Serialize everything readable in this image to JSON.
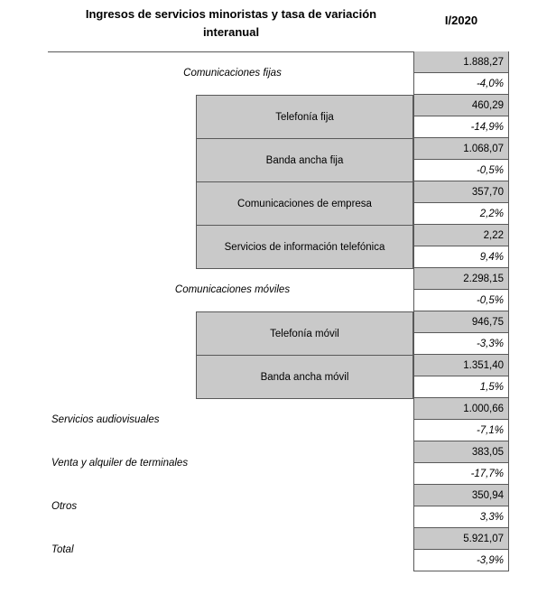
{
  "header": {
    "title_line1": "Ingresos de servicios minoristas y tasa de variación",
    "title_line2": "interanual",
    "period": "I/2020"
  },
  "colors": {
    "cell_gray": "#c9c9c9",
    "border_dark": "#595959",
    "text_color": "#000000"
  },
  "chart_data": {
    "type": "table",
    "title": "Ingresos de servicios minoristas y tasa de variación interanual",
    "column_header": "I/2020",
    "row_format": [
      "revenue (gray cell)",
      "yoy variation % (white italic cell)"
    ],
    "rows": [
      {
        "label": "Comunicaciones fijas",
        "level": 1,
        "value": 1888.27,
        "value_display": "1.888,27",
        "yoy": -4.0,
        "yoy_display": "-4,0%"
      },
      {
        "label": "Telefonía fija",
        "level": 2,
        "value": 460.29,
        "value_display": "460,29",
        "yoy": -14.9,
        "yoy_display": "-14,9%"
      },
      {
        "label": "Banda ancha fija",
        "level": 2,
        "value": 1068.07,
        "value_display": "1.068,07",
        "yoy": -0.5,
        "yoy_display": "-0,5%"
      },
      {
        "label": "Comunicaciones de empresa",
        "level": 2,
        "value": 357.7,
        "value_display": "357,70",
        "yoy": 2.2,
        "yoy_display": "2,2%"
      },
      {
        "label": "Servicios de información telefónica",
        "level": 2,
        "value": 2.22,
        "value_display": "2,22",
        "yoy": 9.4,
        "yoy_display": "9,4%"
      },
      {
        "label": "Comunicaciones móviles",
        "level": 1,
        "value": 2298.15,
        "value_display": "2.298,15",
        "yoy": -0.5,
        "yoy_display": "-0,5%"
      },
      {
        "label": "Telefonía móvil",
        "level": 2,
        "value": 946.75,
        "value_display": "946,75",
        "yoy": -3.3,
        "yoy_display": "-3,3%"
      },
      {
        "label": "Banda ancha móvil",
        "level": 2,
        "value": 1351.4,
        "value_display": "1.351,40",
        "yoy": 1.5,
        "yoy_display": "1,5%"
      },
      {
        "label": "Servicios audiovisuales",
        "level": 0,
        "value": 1000.66,
        "value_display": "1.000,66",
        "yoy": -7.1,
        "yoy_display": "-7,1%"
      },
      {
        "label": "Venta y alquiler de terminales",
        "level": 0,
        "value": 383.05,
        "value_display": "383,05",
        "yoy": -17.7,
        "yoy_display": "-17,7%"
      },
      {
        "label": "Otros",
        "level": 0,
        "value": 350.94,
        "value_display": "350,94",
        "yoy": 3.3,
        "yoy_display": "3,3%"
      },
      {
        "label": "Total",
        "level": 0,
        "value": 5921.07,
        "value_display": "5.921,07",
        "yoy": -3.9,
        "yoy_display": "-3,9%"
      }
    ]
  }
}
